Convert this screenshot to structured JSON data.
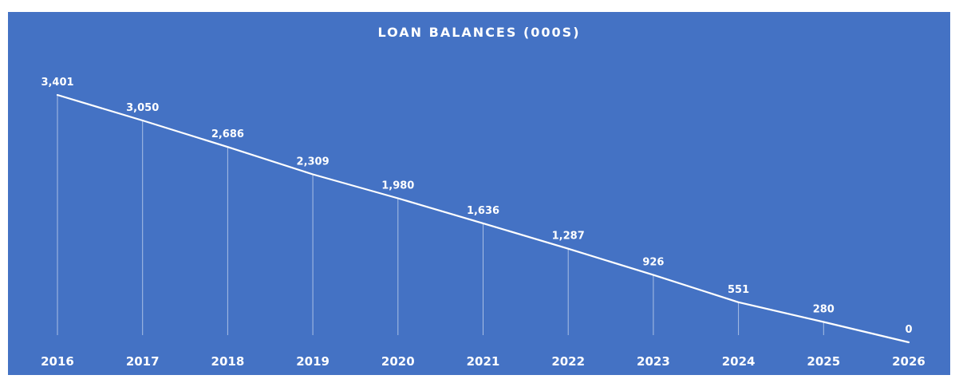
{
  "chart_data": {
    "type": "line",
    "title": "LOAN BALANCES (000S)",
    "xlabel": "",
    "ylabel": "",
    "categories": [
      "2016",
      "2017",
      "2018",
      "2019",
      "2020",
      "2021",
      "2022",
      "2023",
      "2024",
      "2025",
      "2026"
    ],
    "values": [
      3401,
      3050,
      2686,
      2309,
      1980,
      1636,
      1287,
      926,
      551,
      280,
      0
    ],
    "data_labels": [
      "3,401",
      "3,050",
      "2,686",
      "2,309",
      "1,980",
      "1,636",
      "1,287",
      "926",
      "551",
      "280",
      "0"
    ],
    "ylim": [
      0,
      3401
    ],
    "grid": false,
    "drop_lines": true,
    "legend": "none",
    "colors": {
      "background": "#4472c4",
      "line": "#ffffff",
      "text": "#ffffff"
    }
  }
}
